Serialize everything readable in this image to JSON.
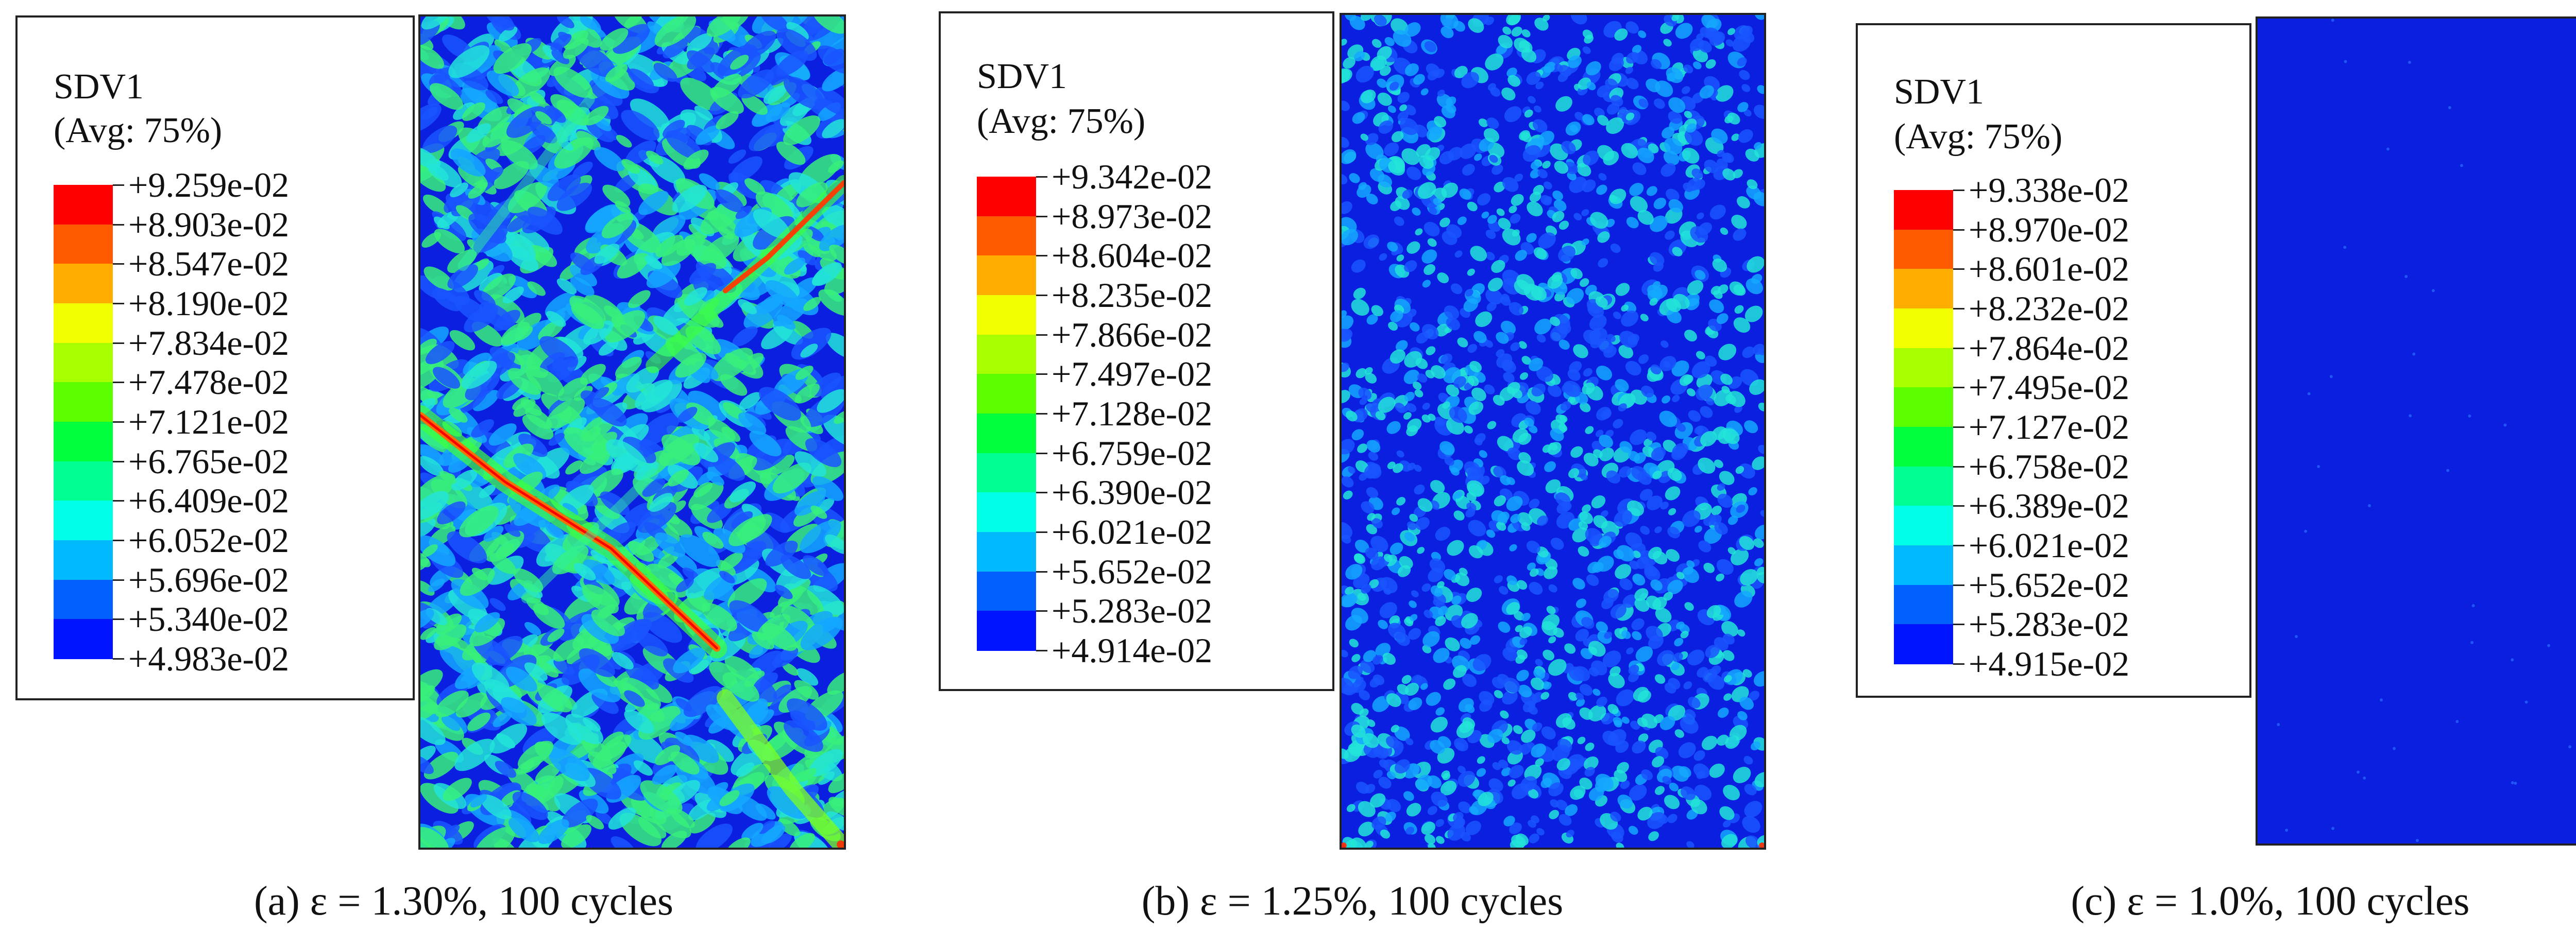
{
  "colormap": [
    "#ff0000",
    "#ff5a00",
    "#ffae00",
    "#f2ff00",
    "#a8ff00",
    "#5cff00",
    "#00ff3c",
    "#00ff92",
    "#00ffe6",
    "#00b9ff",
    "#0061ff",
    "#0014ff"
  ],
  "panels": [
    {
      "id": "a",
      "legend_title": "SDV1",
      "legend_subtitle": "(Avg: 75%)",
      "ticks": [
        "+9.259e-02",
        "+8.903e-02",
        "+8.547e-02",
        "+8.190e-02",
        "+7.834e-02",
        "+7.478e-02",
        "+7.121e-02",
        "+6.765e-02",
        "+6.409e-02",
        "+6.052e-02",
        "+5.696e-02",
        "+5.340e-02",
        "+4.983e-02"
      ],
      "caption": "(a) ε = 1.30%, 100 cycles"
    },
    {
      "id": "b",
      "legend_title": "SDV1",
      "legend_subtitle": "(Avg: 75%)",
      "ticks": [
        "+9.342e-02",
        "+8.973e-02",
        "+8.604e-02",
        "+8.235e-02",
        "+7.866e-02",
        "+7.497e-02",
        "+7.128e-02",
        "+6.759e-02",
        "+6.390e-02",
        "+6.021e-02",
        "+5.652e-02",
        "+5.283e-02",
        "+4.914e-02"
      ],
      "caption": "(b) ε = 1.25%, 100 cycles"
    },
    {
      "id": "c",
      "legend_title": "SDV1",
      "legend_subtitle": "(Avg: 75%)",
      "ticks": [
        "+9.338e-02",
        "+8.970e-02",
        "+8.601e-02",
        "+8.232e-02",
        "+7.864e-02",
        "+7.495e-02",
        "+7.127e-02",
        "+6.758e-02",
        "+6.389e-02",
        "+6.021e-02",
        "+5.652e-02",
        "+5.283e-02",
        "+4.915e-02"
      ],
      "caption": "(c) ε = 1.0%, 100 cycles"
    }
  ]
}
